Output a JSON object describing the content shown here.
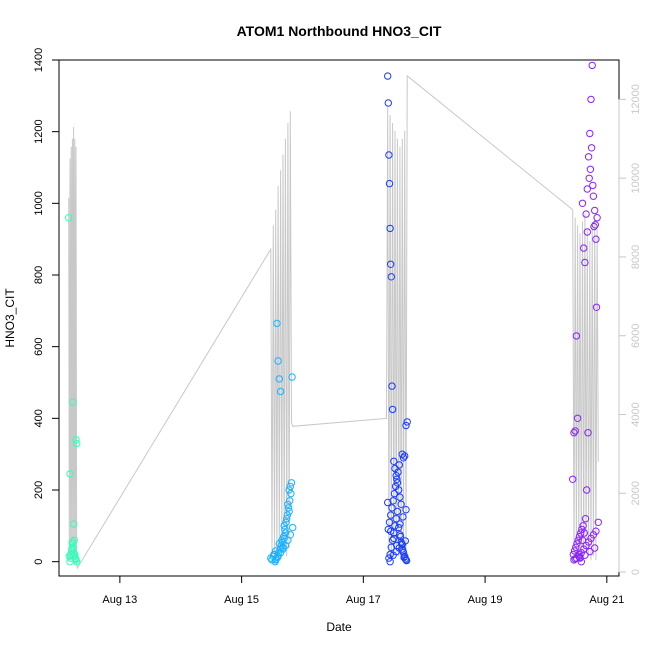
{
  "chart_data": {
    "type": "scatter",
    "title": "ATOM1 Northbound HNO3_CIT",
    "xlabel": "Date",
    "ylabel": "HNO3_CIT",
    "x_unit": "day of August",
    "xlim": [
      12.0,
      21.2
    ],
    "ylim": [
      -40,
      1400
    ],
    "y2lim": [
      -100,
      13000
    ],
    "x_ticks": [
      {
        "value": 13,
        "label": "Aug 13"
      },
      {
        "value": 15,
        "label": "Aug 15"
      },
      {
        "value": 17,
        "label": "Aug 17"
      },
      {
        "value": 19,
        "label": "Aug 19"
      },
      {
        "value": 21,
        "label": "Aug 21"
      }
    ],
    "y_ticks": [
      0,
      200,
      400,
      600,
      800,
      1000,
      1200,
      1400
    ],
    "y2_ticks": [
      0,
      2000,
      4000,
      6000,
      8000,
      10000,
      12000
    ],
    "colors": {
      "flight1": "#33ffbb",
      "flight2": "#1ab2ff",
      "flight3": "#1a3dff",
      "flight4": "#8b22ff",
      "secondary_line": "#c8c8c8",
      "axis": "#000000"
    },
    "series": [
      {
        "color": "#33ffbb",
        "x": [
          12.16,
          12.18,
          12.19,
          12.2,
          12.21,
          12.22,
          12.23,
          12.24,
          12.25,
          12.27,
          12.28,
          12.29,
          12.17,
          12.19,
          12.21,
          12.23,
          12.24,
          12.26,
          12.28,
          12.29,
          12.18,
          12.22,
          12.25,
          12.27
        ],
        "y": [
          960,
          245,
          10,
          20,
          30,
          50,
          40,
          25,
          15,
          10,
          5,
          0,
          15,
          20,
          35,
          445,
          105,
          20,
          340,
          330,
          0,
          55,
          60,
          8
        ]
      },
      {
        "color": "#1ab2ff",
        "x": [
          15.48,
          15.5,
          15.52,
          15.54,
          15.56,
          15.58,
          15.6,
          15.62,
          15.64,
          15.66,
          15.68,
          15.7,
          15.72,
          15.74,
          15.76,
          15.78,
          15.8,
          15.82,
          15.55,
          15.57,
          15.59,
          15.61,
          15.63,
          15.65,
          15.67,
          15.69,
          15.71,
          15.73,
          15.75,
          15.77,
          15.79,
          15.81,
          15.83,
          15.56,
          15.6,
          15.64,
          15.68,
          15.72,
          15.76,
          15.8,
          15.84,
          15.53,
          15.62,
          15.7,
          15.78
        ],
        "y": [
          10,
          5,
          15,
          20,
          30,
          665,
          560,
          510,
          475,
          60,
          40,
          100,
          80,
          120,
          160,
          200,
          210,
          220,
          0,
          8,
          12,
          25,
          35,
          45,
          55,
          70,
          90,
          110,
          130,
          150,
          170,
          190,
          515,
          5,
          15,
          25,
          35,
          45,
          60,
          75,
          95,
          20,
          50,
          65,
          140
        ]
      },
      {
        "color": "#1a3dff",
        "x": [
          17.4,
          17.41,
          17.42,
          17.43,
          17.44,
          17.45,
          17.46,
          17.47,
          17.48,
          17.5,
          17.52,
          17.54,
          17.56,
          17.58,
          17.6,
          17.62,
          17.64,
          17.66,
          17.68,
          17.7,
          17.72,
          17.42,
          17.44,
          17.46,
          17.48,
          17.5,
          17.52,
          17.54,
          17.56,
          17.58,
          17.6,
          17.62,
          17.64,
          17.66,
          17.68,
          17.7,
          17.41,
          17.43,
          17.45,
          17.47,
          17.49,
          17.51,
          17.53,
          17.55,
          17.57,
          17.59,
          17.61,
          17.63,
          17.65,
          17.67,
          17.69,
          17.71,
          17.4,
          17.45,
          17.5,
          17.55,
          17.6,
          17.65,
          17.7,
          17.44,
          17.49,
          17.54,
          17.59,
          17.64,
          17.69
        ],
        "y": [
          1355,
          1280,
          1135,
          1055,
          930,
          830,
          795,
          490,
          425,
          280,
          260,
          240,
          220,
          200,
          180,
          160,
          300,
          290,
          295,
          380,
          390,
          10,
          20,
          40,
          60,
          80,
          100,
          120,
          140,
          95,
          75,
          55,
          35,
          25,
          15,
          5,
          90,
          110,
          130,
          150,
          170,
          190,
          210,
          230,
          250,
          270,
          70,
          50,
          30,
          12,
          8,
          3,
          165,
          85,
          65,
          45,
          105,
          125,
          145,
          0,
          18,
          28,
          38,
          48,
          58
        ]
      },
      {
        "color": "#8b22ff",
        "x": [
          20.44,
          20.46,
          20.48,
          20.5,
          20.52,
          20.54,
          20.56,
          20.58,
          20.6,
          20.62,
          20.64,
          20.66,
          20.68,
          20.7,
          20.72,
          20.74,
          20.76,
          20.78,
          20.8,
          20.82,
          20.84,
          20.45,
          20.47,
          20.49,
          20.51,
          20.53,
          20.55,
          20.57,
          20.59,
          20.61,
          20.63,
          20.65,
          20.67,
          20.69,
          20.71,
          20.73,
          20.75,
          20.77,
          20.79,
          20.81,
          20.83,
          20.46,
          20.5,
          20.54,
          20.58,
          20.62,
          20.66,
          20.7,
          20.74,
          20.78,
          20.82,
          20.48,
          20.56,
          20.64,
          20.72,
          20.8,
          20.86,
          20.6,
          20.68
        ],
        "y": [
          230,
          360,
          365,
          630,
          400,
          20,
          10,
          0,
          60,
          875,
          835,
          970,
          1040,
          1130,
          1195,
          1290,
          1385,
          1020,
          980,
          900,
          960,
          20,
          30,
          40,
          50,
          60,
          70,
          80,
          90,
          100,
          80,
          120,
          200,
          360,
          1070,
          1095,
          1155,
          1050,
          935,
          940,
          710,
          5,
          10,
          15,
          25,
          35,
          45,
          55,
          65,
          75,
          85,
          8,
          12,
          18,
          28,
          38,
          110,
          1000,
          920
        ]
      }
    ],
    "secondary_line": {
      "note_axis": "right",
      "x": [
        12.16,
        12.17,
        12.18,
        12.19,
        12.2,
        12.21,
        12.22,
        12.23,
        12.24,
        12.25,
        12.26,
        12.27,
        12.28,
        12.29,
        12.3,
        15.48,
        15.5,
        15.52,
        15.54,
        15.56,
        15.58,
        15.6,
        15.62,
        15.64,
        15.66,
        15.68,
        15.7,
        15.72,
        15.74,
        15.76,
        15.78,
        15.8,
        15.82,
        15.84,
        17.38,
        17.4,
        17.42,
        17.44,
        17.46,
        17.48,
        17.5,
        17.52,
        17.54,
        17.56,
        17.58,
        17.6,
        17.62,
        17.64,
        17.66,
        17.68,
        17.7,
        17.72,
        20.44,
        20.46,
        20.48,
        20.5,
        20.52,
        20.54,
        20.56,
        20.58,
        20.6,
        20.62,
        20.64,
        20.66,
        20.68,
        20.7,
        20.72,
        20.74,
        20.76,
        20.78,
        20.8,
        20.82,
        20.84,
        20.86
      ],
      "y": [
        9500,
        300,
        10500,
        400,
        10800,
        500,
        11000,
        600,
        11300,
        500,
        11000,
        300,
        10800,
        200,
        100,
        8200,
        400,
        8800,
        300,
        9200,
        400,
        9800,
        500,
        10200,
        600,
        10600,
        500,
        11000,
        400,
        11400,
        600,
        11700,
        3800,
        3700,
        3900,
        11800,
        400,
        11600,
        300,
        11400,
        400,
        11200,
        500,
        11000,
        400,
        10800,
        300,
        11000,
        500,
        11200,
        400,
        12600,
        9200,
        300,
        9000,
        400,
        8800,
        500,
        8600,
        300,
        8900,
        400,
        9100,
        500,
        8700,
        400,
        8400,
        300,
        8800,
        400,
        9000,
        300,
        8700,
        2800
      ]
    }
  }
}
